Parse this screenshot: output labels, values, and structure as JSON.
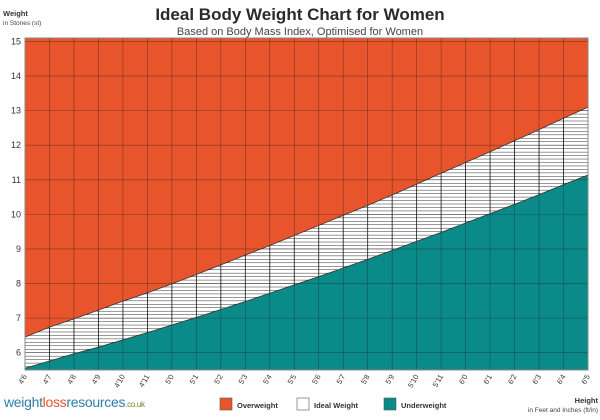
{
  "chart_data": {
    "type": "area",
    "title": "Ideal Body Weight Chart for Women",
    "subtitle": "Based on Body Mass Index, Optimised for Women",
    "ylabel": "Weight",
    "ylabel_sub": "in Stones (st)",
    "xlabel": "Height",
    "xlabel_sub": "in Feet and Inches (ft/in)",
    "ylim": [
      5.5,
      15.1
    ],
    "yticks": [
      6,
      7,
      8,
      9,
      10,
      11,
      12,
      13,
      14,
      15
    ],
    "categories": [
      "4'6",
      "4'7",
      "4'8",
      "4'9",
      "4'10",
      "4'11",
      "5'0",
      "5'1",
      "5'2",
      "5'3",
      "5'4",
      "5'5",
      "5'6",
      "5'7",
      "5'8",
      "5'9",
      "5'10",
      "5'11",
      "6'0",
      "6'1",
      "6'2",
      "6'3",
      "6'4",
      "6'5"
    ],
    "series": [
      {
        "name": "Overweight",
        "color": "#e8542c",
        "lower_bound_values": [
          6.45,
          6.74,
          6.98,
          7.23,
          7.49,
          7.73,
          7.99,
          8.26,
          8.54,
          8.82,
          9.1,
          9.39,
          9.68,
          9.97,
          10.26,
          10.56,
          10.87,
          11.19,
          11.5,
          11.81,
          12.13,
          12.45,
          12.78,
          13.1
        ]
      },
      {
        "name": "Ideal Weight",
        "color": "#ffffff"
      },
      {
        "name": "Underweight",
        "color": "#0b8a8a",
        "upper_bound_values": [
          5.55,
          5.76,
          5.97,
          6.16,
          6.37,
          6.58,
          6.8,
          7.02,
          7.25,
          7.48,
          7.72,
          7.96,
          8.2,
          8.45,
          8.7,
          8.96,
          9.22,
          9.48,
          9.75,
          10.02,
          10.29,
          10.57,
          10.86,
          11.14
        ]
      }
    ],
    "grid": true,
    "legend_position": "bottom"
  },
  "legend": [
    {
      "label": "Overweight",
      "color": "#e8542c"
    },
    {
      "label": "Ideal Weight",
      "color": "#ffffff"
    },
    {
      "label": "Underweight",
      "color": "#0b8a8a"
    }
  ],
  "brand": {
    "part1": "weight",
    "part2": "loss",
    "part3": "resources",
    "suffix": ".co.uk"
  },
  "colors": {
    "grid": "#1a1a1a",
    "frame": "#888888"
  }
}
